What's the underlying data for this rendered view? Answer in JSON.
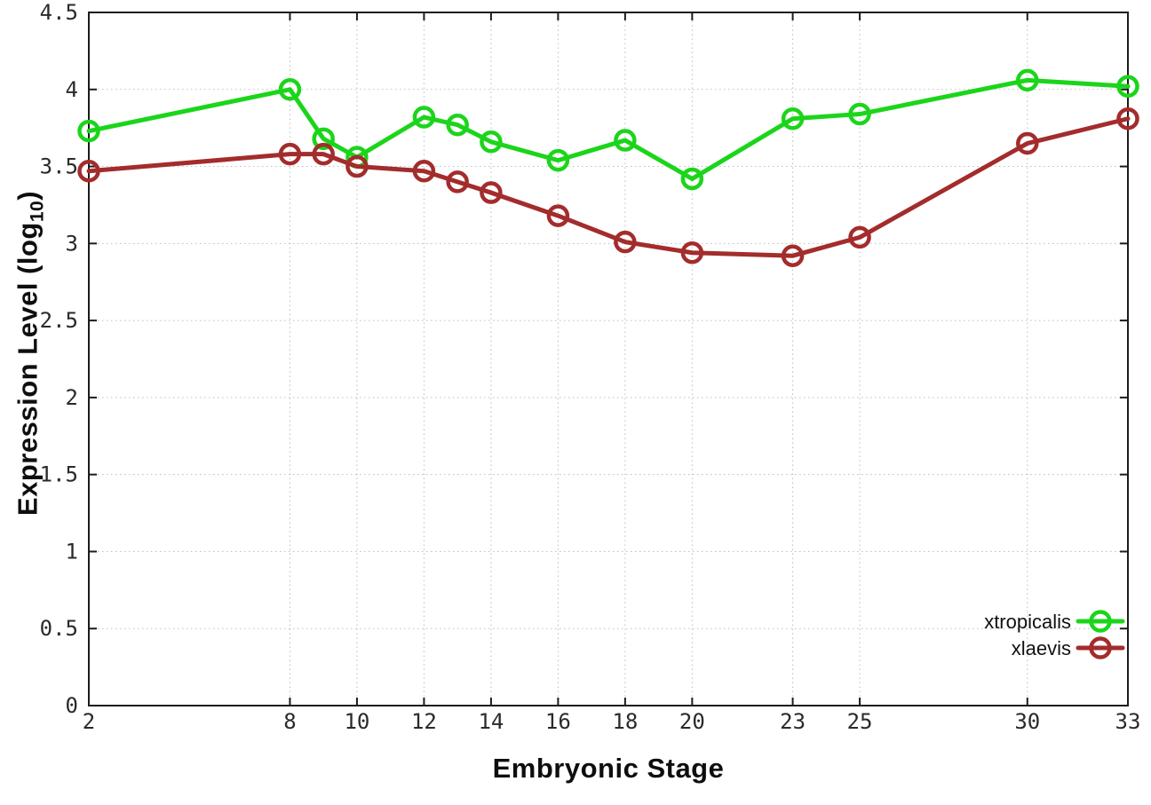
{
  "chart_data": {
    "type": "line",
    "title": "",
    "xlabel": "Embryonic Stage",
    "ylabel": "Expression Level (log10)",
    "ylabel_parts": {
      "pre": "Expression Level (log",
      "sub": "10",
      "post": ")"
    },
    "x": [
      2,
      8,
      9,
      10,
      12,
      13,
      14,
      16,
      18,
      20,
      23,
      25,
      30,
      33
    ],
    "series": [
      {
        "name": "xtropicalis",
        "color": "#1bd51b",
        "values": [
          3.73,
          4.0,
          3.68,
          3.56,
          3.82,
          3.77,
          3.66,
          3.54,
          3.67,
          3.42,
          3.81,
          3.84,
          4.06,
          4.02
        ]
      },
      {
        "name": "xlaevis",
        "color": "#a32c2c",
        "values": [
          3.47,
          3.58,
          3.58,
          3.5,
          3.47,
          3.4,
          3.33,
          3.18,
          3.01,
          2.94,
          2.92,
          3.04,
          3.65,
          3.81
        ]
      }
    ],
    "xlim": [
      2,
      33
    ],
    "ylim": [
      0,
      4.5
    ],
    "xtick_values": [
      2,
      8,
      10,
      12,
      14,
      16,
      18,
      20,
      23,
      25,
      30,
      33
    ],
    "xtick_labels": [
      "2",
      "8",
      "10",
      "12",
      "14",
      "16",
      "18",
      "20",
      "23",
      "25",
      "30",
      "33"
    ],
    "ytick_values": [
      0,
      0.5,
      1,
      1.5,
      2,
      2.5,
      3,
      3.5,
      4,
      4.5
    ],
    "ytick_labels": [
      "0",
      "0.5",
      "1",
      "1.5",
      "2",
      "2.5",
      "3",
      "3.5",
      "4",
      "4.5"
    ],
    "grid": true,
    "legend_position": "inside-bottom-right",
    "legend_entries": [
      "xtropicalis",
      "xlaevis"
    ],
    "marker": "open-circle",
    "line_style": "solid"
  },
  "colors": {
    "background": "#ffffff",
    "axis": "#1c1c1c",
    "grid": "#bdbdbd",
    "tick_label": "#2a2a2a",
    "legend_text": "#111111",
    "series_xtropicalis": "#1bd51b",
    "series_xlaevis": "#a32c2c"
  }
}
